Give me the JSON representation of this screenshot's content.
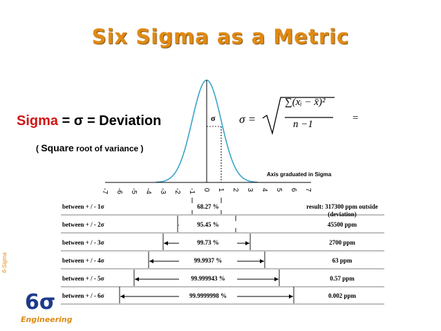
{
  "title": "Six Sigma as a Metric",
  "definition": {
    "sigma_word": "Sigma",
    "rest": "= σ = Deviation",
    "note_open": "( ",
    "note_square": "Square",
    "note_rest": " root of variance )"
  },
  "formula": {
    "lhs": "σ =",
    "numerator": "∑(xᵢ − x̄)²",
    "denominator": "n −1",
    "trailing": "="
  },
  "curve_marker": "σ",
  "axis_note": "Axis graduated in Sigma",
  "ticks": [
    "-7",
    "-6",
    "-5",
    "-4",
    "-3",
    "-2",
    "-1",
    "0",
    "1",
    "2",
    "3",
    "4",
    "5",
    "6",
    "7"
  ],
  "rows": [
    {
      "label": "between + / - 1σ",
      "pct": "68.27 %",
      "result": "result:  317300  ppm outside",
      "result2": "(deviation)",
      "sigma": 1
    },
    {
      "label": "between  + / - 2σ",
      "pct": "95.45 %",
      "result": "45500  ppm",
      "sigma": 2
    },
    {
      "label": "between   + / - 3σ",
      "pct": "99.73 %",
      "result": "2700  ppm",
      "sigma": 3
    },
    {
      "label": "between   + / - 4σ",
      "pct": "99.9937 %",
      "result": "63  ppm",
      "sigma": 4
    },
    {
      "label": "between   + / - 5σ",
      "pct": "99.999943 %",
      "result": "0.57  ppm",
      "sigma": 5
    },
    {
      "label": "between  + / - 6σ",
      "pct": "99.9999998 %",
      "result": "0.002  ppm",
      "sigma": 6
    }
  ],
  "logo": {
    "side_text": "6-Sigma",
    "main": "6σ",
    "sub": "Engineering"
  },
  "colors": {
    "title": "#e08a14",
    "sigma_word": "#d21414",
    "curve": "#3aa3c9",
    "logo_blue": "#1d3a8a"
  }
}
